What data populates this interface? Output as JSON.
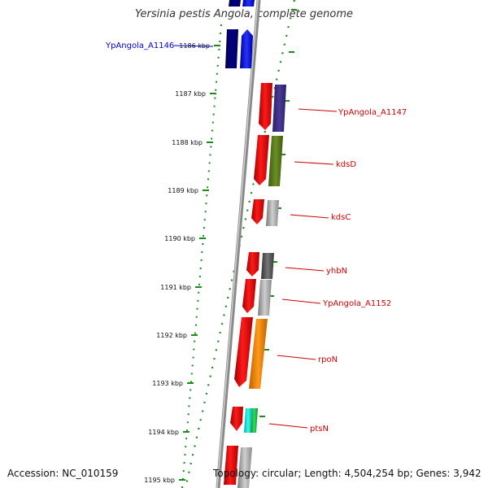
{
  "header": {
    "title": "Yersinia pestis Angola, complete genome"
  },
  "footer": {
    "accession": "Accession: NC_010159",
    "topology": "Topology: circular; Length: 4,504,254 bp; Genes: 3,942"
  },
  "colors": {
    "forward_label": "#0000cc",
    "reverse_label": "#cc0000",
    "tick": "#1a8c1a",
    "backbone": "#888888"
  },
  "ticks": [
    "1186 kbp",
    "1187 kbp",
    "1188 kbp",
    "1189 kbp",
    "1190 kbp",
    "1191 kbp",
    "1192 kbp",
    "1193 kbp",
    "1194 kbp",
    "1195 kbp"
  ],
  "gene_labels": [
    {
      "text": "YpAngola_A1146",
      "strand": "forward"
    },
    {
      "text": "YpAngola_A1147",
      "strand": "reverse"
    },
    {
      "text": "kdsD",
      "strand": "reverse"
    },
    {
      "text": "kdsC",
      "strand": "reverse"
    },
    {
      "text": "yhbN",
      "strand": "reverse"
    },
    {
      "text": "YpAngola_A1152",
      "strand": "reverse"
    },
    {
      "text": "rpoN",
      "strand": "reverse"
    },
    {
      "text": "ptsN",
      "strand": "reverse"
    }
  ]
}
